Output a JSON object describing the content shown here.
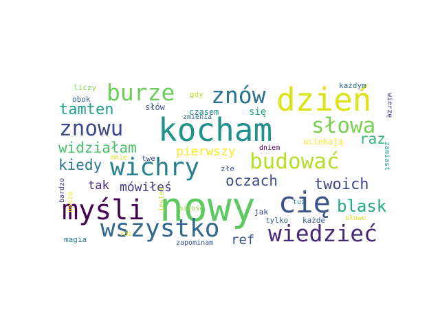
{
  "words": [
    {
      "text": "nowy",
      "color": "#5ec962"
    },
    {
      "text": "kocham",
      "color": "#21918c"
    },
    {
      "text": "dzień",
      "color": "#dde318"
    },
    {
      "text": "cię",
      "color": "#3b528b"
    },
    {
      "text": "myśli",
      "color": "#440154"
    },
    {
      "text": "wszystko",
      "color": "#31688e"
    },
    {
      "text": "wiedzieć",
      "color": "#482878"
    },
    {
      "text": "wichry",
      "color": "#26828e"
    },
    {
      "text": "budować",
      "color": "#b5de2b"
    },
    {
      "text": "znowu",
      "color": "#3e4989"
    },
    {
      "text": "burze",
      "color": "#6ccd5a"
    },
    {
      "text": "znów",
      "color": "#2c728e"
    },
    {
      "text": "słowa",
      "color": "#7ad151"
    },
    {
      "text": "tamten",
      "color": "#1f9e89"
    },
    {
      "text": "widziałam",
      "color": "#4ac16d"
    },
    {
      "text": "pierwszy",
      "color": "#fde725"
    },
    {
      "text": "kiedy",
      "color": "#2a788e"
    },
    {
      "text": "oczach",
      "color": "#3e4c8a"
    },
    {
      "text": "twoich",
      "color": "#414487"
    },
    {
      "text": "blask",
      "color": "#22a884"
    },
    {
      "text": "raz",
      "color": "#35b779"
    },
    {
      "text": "mówiłeś",
      "color": "#443983"
    },
    {
      "text": "tak",
      "color": "#472d7b"
    },
    {
      "text": "ref",
      "color": "#3b528b"
    },
    {
      "text": "się",
      "color": "#20a486"
    },
    {
      "text": "czasem",
      "color": "#25848e"
    },
    {
      "text": "słów",
      "color": "#3b528b"
    },
    {
      "text": "uciekają",
      "color": "#fde725"
    },
    {
      "text": "gdy",
      "color": "#bddf26"
    },
    {
      "text": "liczy",
      "color": "#86d549"
    },
    {
      "text": "obok",
      "color": "#33638d"
    },
    {
      "text": "każdym",
      "color": "#2f6c8e"
    },
    {
      "text": "wierzę",
      "color": "#46337f"
    },
    {
      "text": "zmienia",
      "color": "#2e6e8e"
    },
    {
      "text": "dniem",
      "color": "#440154"
    },
    {
      "text": "twe",
      "color": "#3b528b"
    },
    {
      "text": "mnie",
      "color": "#dde318"
    },
    {
      "text": "zamiast",
      "color": "#1fa088"
    },
    {
      "text": "złe",
      "color": "#3b528b"
    },
    {
      "text": "miłość",
      "color": "#95d840"
    },
    {
      "text": "bardzo",
      "color": "#472f7d"
    },
    {
      "text": "nasza",
      "color": "#fde725"
    },
    {
      "text": "jesteś",
      "color": "#c2df23"
    },
    {
      "text": "jak",
      "color": "#404688"
    },
    {
      "text": "tuż",
      "color": "#287d8e"
    },
    {
      "text": "tylko",
      "color": "#31688e"
    },
    {
      "text": "każde",
      "color": "#3b528b"
    },
    {
      "text": "słowo",
      "color": "#dde318"
    },
    {
      "text": "magia",
      "color": "#277f8e"
    },
    {
      "text": "róż",
      "color": "#f0e51e"
    },
    {
      "text": "zapominam",
      "color": "#39558c"
    }
  ]
}
